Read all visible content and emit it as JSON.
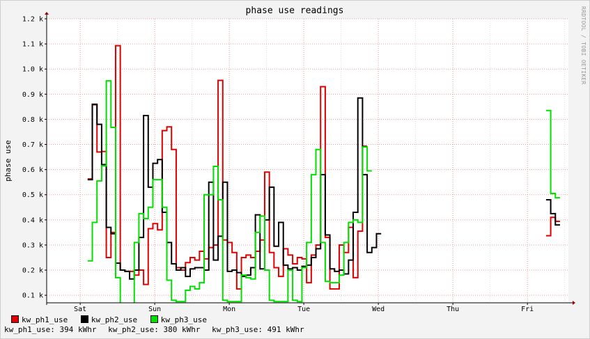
{
  "sidebar_text": "RRDTOOL / TOBI OETIKER",
  "legend": [
    {
      "name": "kw_ph1_use",
      "color": "#e00000"
    },
    {
      "name": "kw_ph2_use",
      "color": "#000000"
    },
    {
      "name": "kw_ph3_use",
      "color": "#00e000"
    }
  ],
  "summary": [
    "kw_ph1_use: 394 kWhr",
    "kw_ph2_use: 380 kWhr",
    "kw_ph3_use: 491 kWhr"
  ],
  "chart_data": {
    "type": "line",
    "title": "phase use readings",
    "ylabel": "phase use",
    "xlabel": "",
    "ylim": [
      0.07,
      1.2
    ],
    "xlim": [
      -0.45,
      6.55
    ],
    "y_ticks": [
      0.1,
      0.2,
      0.3,
      0.4,
      0.5,
      0.6,
      0.7,
      0.8,
      0.9,
      1.0,
      1.1,
      1.2
    ],
    "y_tick_labels": [
      "0.1 k",
      "0.2 k",
      "0.3 k",
      "0.4 k",
      "0.5 k",
      "0.6 k",
      "0.7 k",
      "0.8 k",
      "0.9 k",
      "1.0 k",
      "1.1 k",
      "1.2 k"
    ],
    "x_ticks": [
      0,
      1,
      2,
      3,
      4,
      5,
      6
    ],
    "x_tick_labels": [
      "Sat",
      "Sun",
      "Mon",
      "Tue",
      "Wed",
      "Thu",
      "Fri"
    ],
    "grid": true,
    "step_interval_days": 0.0625,
    "series": [
      {
        "name": "kw_ph1_use",
        "color": "#e00000",
        "segments": [
          {
            "start": 0.1,
            "values": [
              0.563,
              0.858,
              0.67,
              0.672,
              0.25,
              0.35,
              1.093,
              0.2,
              0.195,
              0.195,
              0.18,
              0.2,
              0.143,
              0.365,
              0.385,
              0.36,
              0.755,
              0.77,
              0.68,
              0.21,
              0.2,
              0.23,
              0.25,
              0.24,
              0.275,
              0.245,
              0.29,
              0.3,
              0.955,
              0.32,
              0.31,
              0.27,
              0.125,
              0.25,
              0.26,
              0.25,
              0.275,
              0.32,
              0.59,
              0.27,
              0.21,
              0.175,
              0.285,
              0.26,
              0.225,
              0.25,
              0.245,
              0.15,
              0.26,
              0.3,
              0.93,
              0.33,
              0.125,
              0.125,
              0.3,
              0.27,
              0.37,
              0.17,
              0.355,
              0.693
            ]
          },
          {
            "start": 6.25,
            "values": [
              0.337,
              0.41,
              0.394
            ]
          }
        ]
      },
      {
        "name": "kw_ph2_use",
        "color": "#000000",
        "segments": [
          {
            "start": 0.1,
            "values": [
              0.56,
              0.86,
              0.78,
              0.62,
              0.37,
              0.345,
              0.228,
              0.2,
              0.195,
              0.165,
              0.2,
              0.33,
              0.815,
              0.53,
              0.625,
              0.64,
              0.43,
              0.31,
              0.225,
              0.2,
              0.21,
              0.175,
              0.205,
              0.21,
              0.21,
              0.2,
              0.55,
              0.24,
              0.335,
              0.55,
              0.195,
              0.2,
              0.19,
              0.175,
              0.18,
              0.21,
              0.42,
              0.205,
              0.4,
              0.53,
              0.295,
              0.39,
              0.22,
              0.205,
              0.21,
              0.2,
              0.215,
              0.22,
              0.25,
              0.285,
              0.58,
              0.34,
              0.205,
              0.195,
              0.2,
              0.185,
              0.24,
              0.43,
              0.885,
              0.58,
              0.27,
              0.29,
              0.345
            ]
          },
          {
            "start": 6.25,
            "values": [
              0.48,
              0.425,
              0.38
            ]
          }
        ]
      },
      {
        "name": "kw_ph3_use",
        "color": "#00e000",
        "segments": [
          {
            "start": 0.1,
            "values": [
              0.237,
              0.39,
              0.555,
              0.615,
              0.953,
              0.768,
              0.17,
              0.0,
              0.0,
              0.0,
              0.31,
              0.425,
              0.405,
              0.45,
              0.56,
              0.56,
              0.45,
              0.16,
              0.08,
              0.075,
              0.075,
              0.12,
              0.135,
              0.125,
              0.15,
              0.5,
              0.5,
              0.613,
              0.48,
              0.08,
              0.075,
              0.075,
              0.075,
              0.18,
              0.17,
              0.165,
              0.35,
              0.415,
              0.2,
              0.08,
              0.075,
              0.075,
              0.075,
              0.2,
              0.08,
              0.075,
              0.21,
              0.31,
              0.58,
              0.68,
              0.31,
              0.155,
              0.15,
              0.15,
              0.18,
              0.31,
              0.39,
              0.4,
              0.39,
              0.69,
              0.595
            ]
          },
          {
            "start": 6.25,
            "values": [
              0.835,
              0.505,
              0.488
            ]
          }
        ]
      }
    ]
  }
}
